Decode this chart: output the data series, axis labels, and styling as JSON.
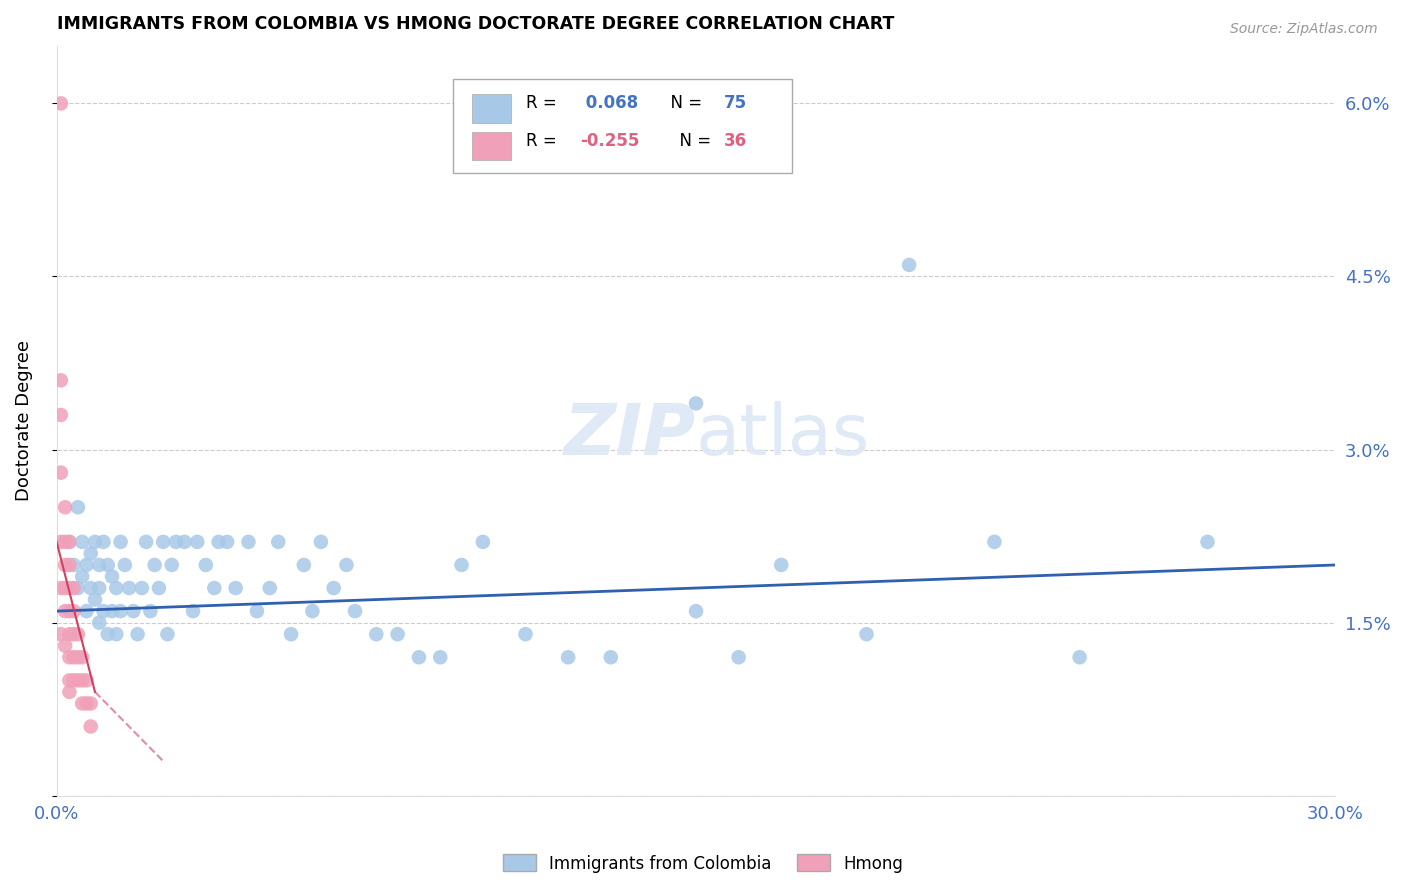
{
  "title": "IMMIGRANTS FROM COLOMBIA VS HMONG DOCTORATE DEGREE CORRELATION CHART",
  "source": "Source: ZipAtlas.com",
  "ylabel": "Doctorate Degree",
  "yticks": [
    0.0,
    0.015,
    0.03,
    0.045,
    0.06
  ],
  "ytick_labels": [
    "",
    "1.5%",
    "3.0%",
    "4.5%",
    "6.0%"
  ],
  "xticks": [
    0.0,
    0.05,
    0.1,
    0.15,
    0.2,
    0.25,
    0.3
  ],
  "xtick_labels": [
    "0.0%",
    "",
    "",
    "",
    "",
    "",
    "30.0%"
  ],
  "xlim": [
    0.0,
    0.3
  ],
  "ylim": [
    0.0,
    0.065
  ],
  "colombia_R": 0.068,
  "colombia_N": 75,
  "hmong_R": -0.255,
  "hmong_N": 36,
  "colombia_color": "#a8c8e8",
  "hmong_color": "#f0a0b8",
  "colombia_line_color": "#3060b0",
  "hmong_line_color": "#d04060",
  "watermark_color": "#dce8f5",
  "colombia_scatter_x": [
    0.003,
    0.004,
    0.005,
    0.005,
    0.006,
    0.006,
    0.007,
    0.007,
    0.008,
    0.008,
    0.009,
    0.009,
    0.01,
    0.01,
    0.01,
    0.011,
    0.011,
    0.012,
    0.012,
    0.013,
    0.013,
    0.014,
    0.014,
    0.015,
    0.015,
    0.016,
    0.017,
    0.018,
    0.019,
    0.02,
    0.021,
    0.022,
    0.023,
    0.024,
    0.025,
    0.026,
    0.027,
    0.028,
    0.03,
    0.032,
    0.033,
    0.035,
    0.037,
    0.038,
    0.04,
    0.042,
    0.045,
    0.047,
    0.05,
    0.052,
    0.055,
    0.058,
    0.06,
    0.062,
    0.065,
    0.068,
    0.07,
    0.075,
    0.08,
    0.085,
    0.09,
    0.095,
    0.1,
    0.11,
    0.12,
    0.13,
    0.15,
    0.16,
    0.17,
    0.19,
    0.22,
    0.24,
    0.27,
    0.15,
    0.2
  ],
  "colombia_scatter_y": [
    0.022,
    0.02,
    0.025,
    0.018,
    0.022,
    0.019,
    0.02,
    0.016,
    0.021,
    0.018,
    0.022,
    0.017,
    0.02,
    0.018,
    0.015,
    0.022,
    0.016,
    0.02,
    0.014,
    0.019,
    0.016,
    0.018,
    0.014,
    0.022,
    0.016,
    0.02,
    0.018,
    0.016,
    0.014,
    0.018,
    0.022,
    0.016,
    0.02,
    0.018,
    0.022,
    0.014,
    0.02,
    0.022,
    0.022,
    0.016,
    0.022,
    0.02,
    0.018,
    0.022,
    0.022,
    0.018,
    0.022,
    0.016,
    0.018,
    0.022,
    0.014,
    0.02,
    0.016,
    0.022,
    0.018,
    0.02,
    0.016,
    0.014,
    0.014,
    0.012,
    0.012,
    0.02,
    0.022,
    0.014,
    0.012,
    0.012,
    0.016,
    0.012,
    0.02,
    0.014,
    0.022,
    0.012,
    0.022,
    0.034,
    0.046
  ],
  "hmong_scatter_x": [
    0.001,
    0.001,
    0.001,
    0.001,
    0.001,
    0.001,
    0.001,
    0.002,
    0.002,
    0.002,
    0.002,
    0.002,
    0.002,
    0.003,
    0.003,
    0.003,
    0.003,
    0.003,
    0.003,
    0.003,
    0.003,
    0.004,
    0.004,
    0.004,
    0.004,
    0.004,
    0.005,
    0.005,
    0.005,
    0.006,
    0.006,
    0.006,
    0.007,
    0.007,
    0.008,
    0.008
  ],
  "hmong_scatter_y": [
    0.06,
    0.036,
    0.033,
    0.028,
    0.022,
    0.018,
    0.014,
    0.025,
    0.022,
    0.02,
    0.018,
    0.016,
    0.013,
    0.022,
    0.02,
    0.018,
    0.016,
    0.014,
    0.012,
    0.01,
    0.009,
    0.018,
    0.016,
    0.014,
    0.012,
    0.01,
    0.014,
    0.012,
    0.01,
    0.012,
    0.01,
    0.008,
    0.01,
    0.008,
    0.008,
    0.006
  ],
  "colombia_line_x": [
    0.0,
    0.3
  ],
  "colombia_line_y": [
    0.016,
    0.02
  ],
  "hmong_line_x": [
    0.0,
    0.009
  ],
  "hmong_line_y": [
    0.022,
    0.009
  ]
}
